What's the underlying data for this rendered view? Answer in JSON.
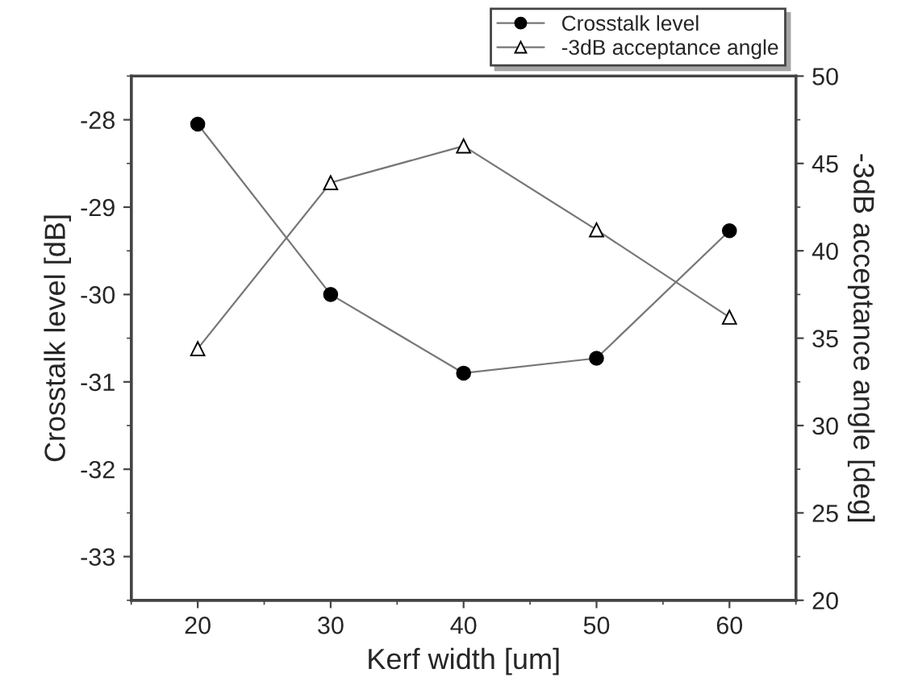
{
  "chart_data": {
    "type": "line",
    "xlabel": "Kerf width [um]",
    "ylabel": "Crosstalk level [dB]",
    "y2label": "-3dB acceptance angle [deg]",
    "x": [
      20,
      30,
      40,
      50,
      60
    ],
    "series": [
      {
        "name": "Crosstalk level",
        "color": "#000000",
        "marker": "circle",
        "values": [
          -28.05,
          -30.0,
          -30.9,
          -30.73,
          -29.27
        ]
      },
      {
        "name": "-3dB acceptance angle",
        "color": "#000000",
        "marker": "triangle",
        "axis": "y2",
        "values": [
          34.4,
          43.9,
          46.0,
          41.2,
          36.2
        ]
      }
    ],
    "xlim": [
      15,
      65
    ],
    "xticks": [
      20,
      30,
      40,
      50,
      60
    ],
    "ylim": [
      -33.5,
      -27.5
    ],
    "yticks": [
      -33,
      -32,
      -31,
      -30,
      -29,
      -28
    ],
    "y2lim": [
      20,
      50
    ],
    "y2ticks": [
      20,
      25,
      30,
      35,
      40,
      45,
      50
    ],
    "grid": false,
    "legend": "top right",
    "line_style": "solid"
  }
}
